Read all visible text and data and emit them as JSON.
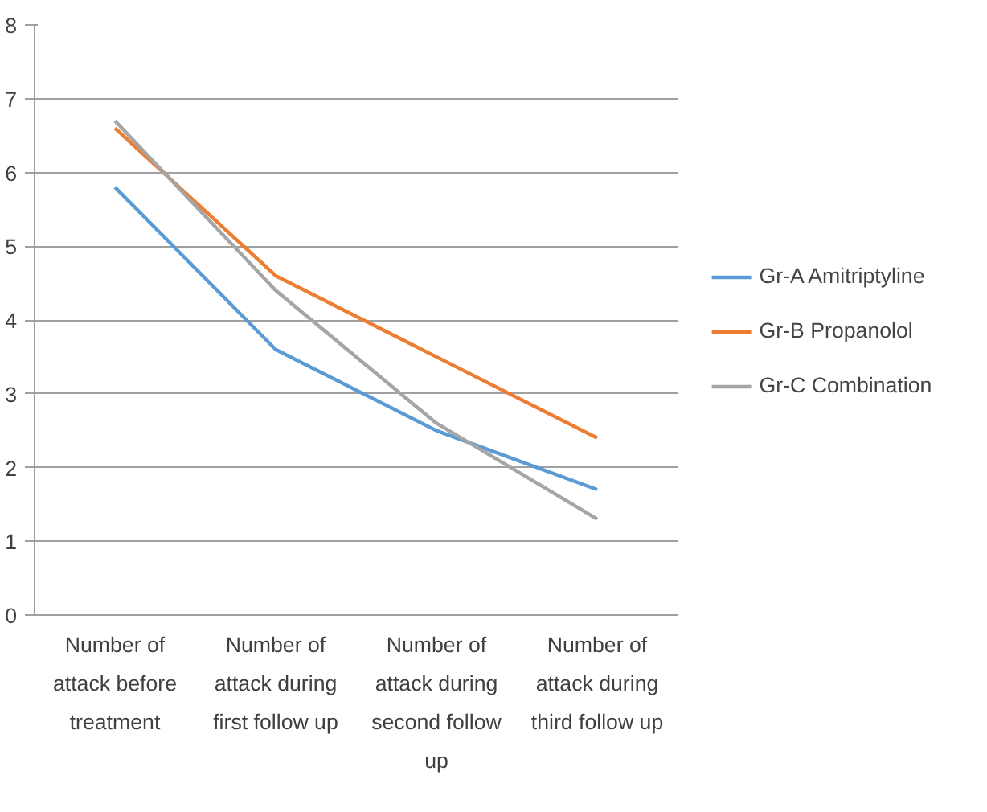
{
  "chart_data": {
    "type": "line",
    "categories": [
      "Number of\nattack before\ntreatment",
      "Number of\nattack during\nfirst follow up",
      "Number of\nattack during\nsecond follow\nup",
      "Number of\nattack during\nthird follow up"
    ],
    "series": [
      {
        "name": "Gr-A Amitriptyline",
        "color": "#5b9bd5",
        "values": [
          5.8,
          3.6,
          2.5,
          1.7
        ]
      },
      {
        "name": "Gr-B Propanolol",
        "color": "#ed7d31",
        "values": [
          6.6,
          4.6,
          3.5,
          2.4
        ]
      },
      {
        "name": "Gr-C Combination",
        "color": "#a5a5a5",
        "values": [
          6.7,
          4.4,
          2.6,
          1.3
        ]
      }
    ],
    "ylim": [
      0,
      8
    ],
    "yticks": [
      0,
      1,
      2,
      3,
      4,
      5,
      6,
      7,
      8
    ],
    "grid": "y",
    "legend": "right",
    "marker": "none",
    "line_style": "solid"
  }
}
